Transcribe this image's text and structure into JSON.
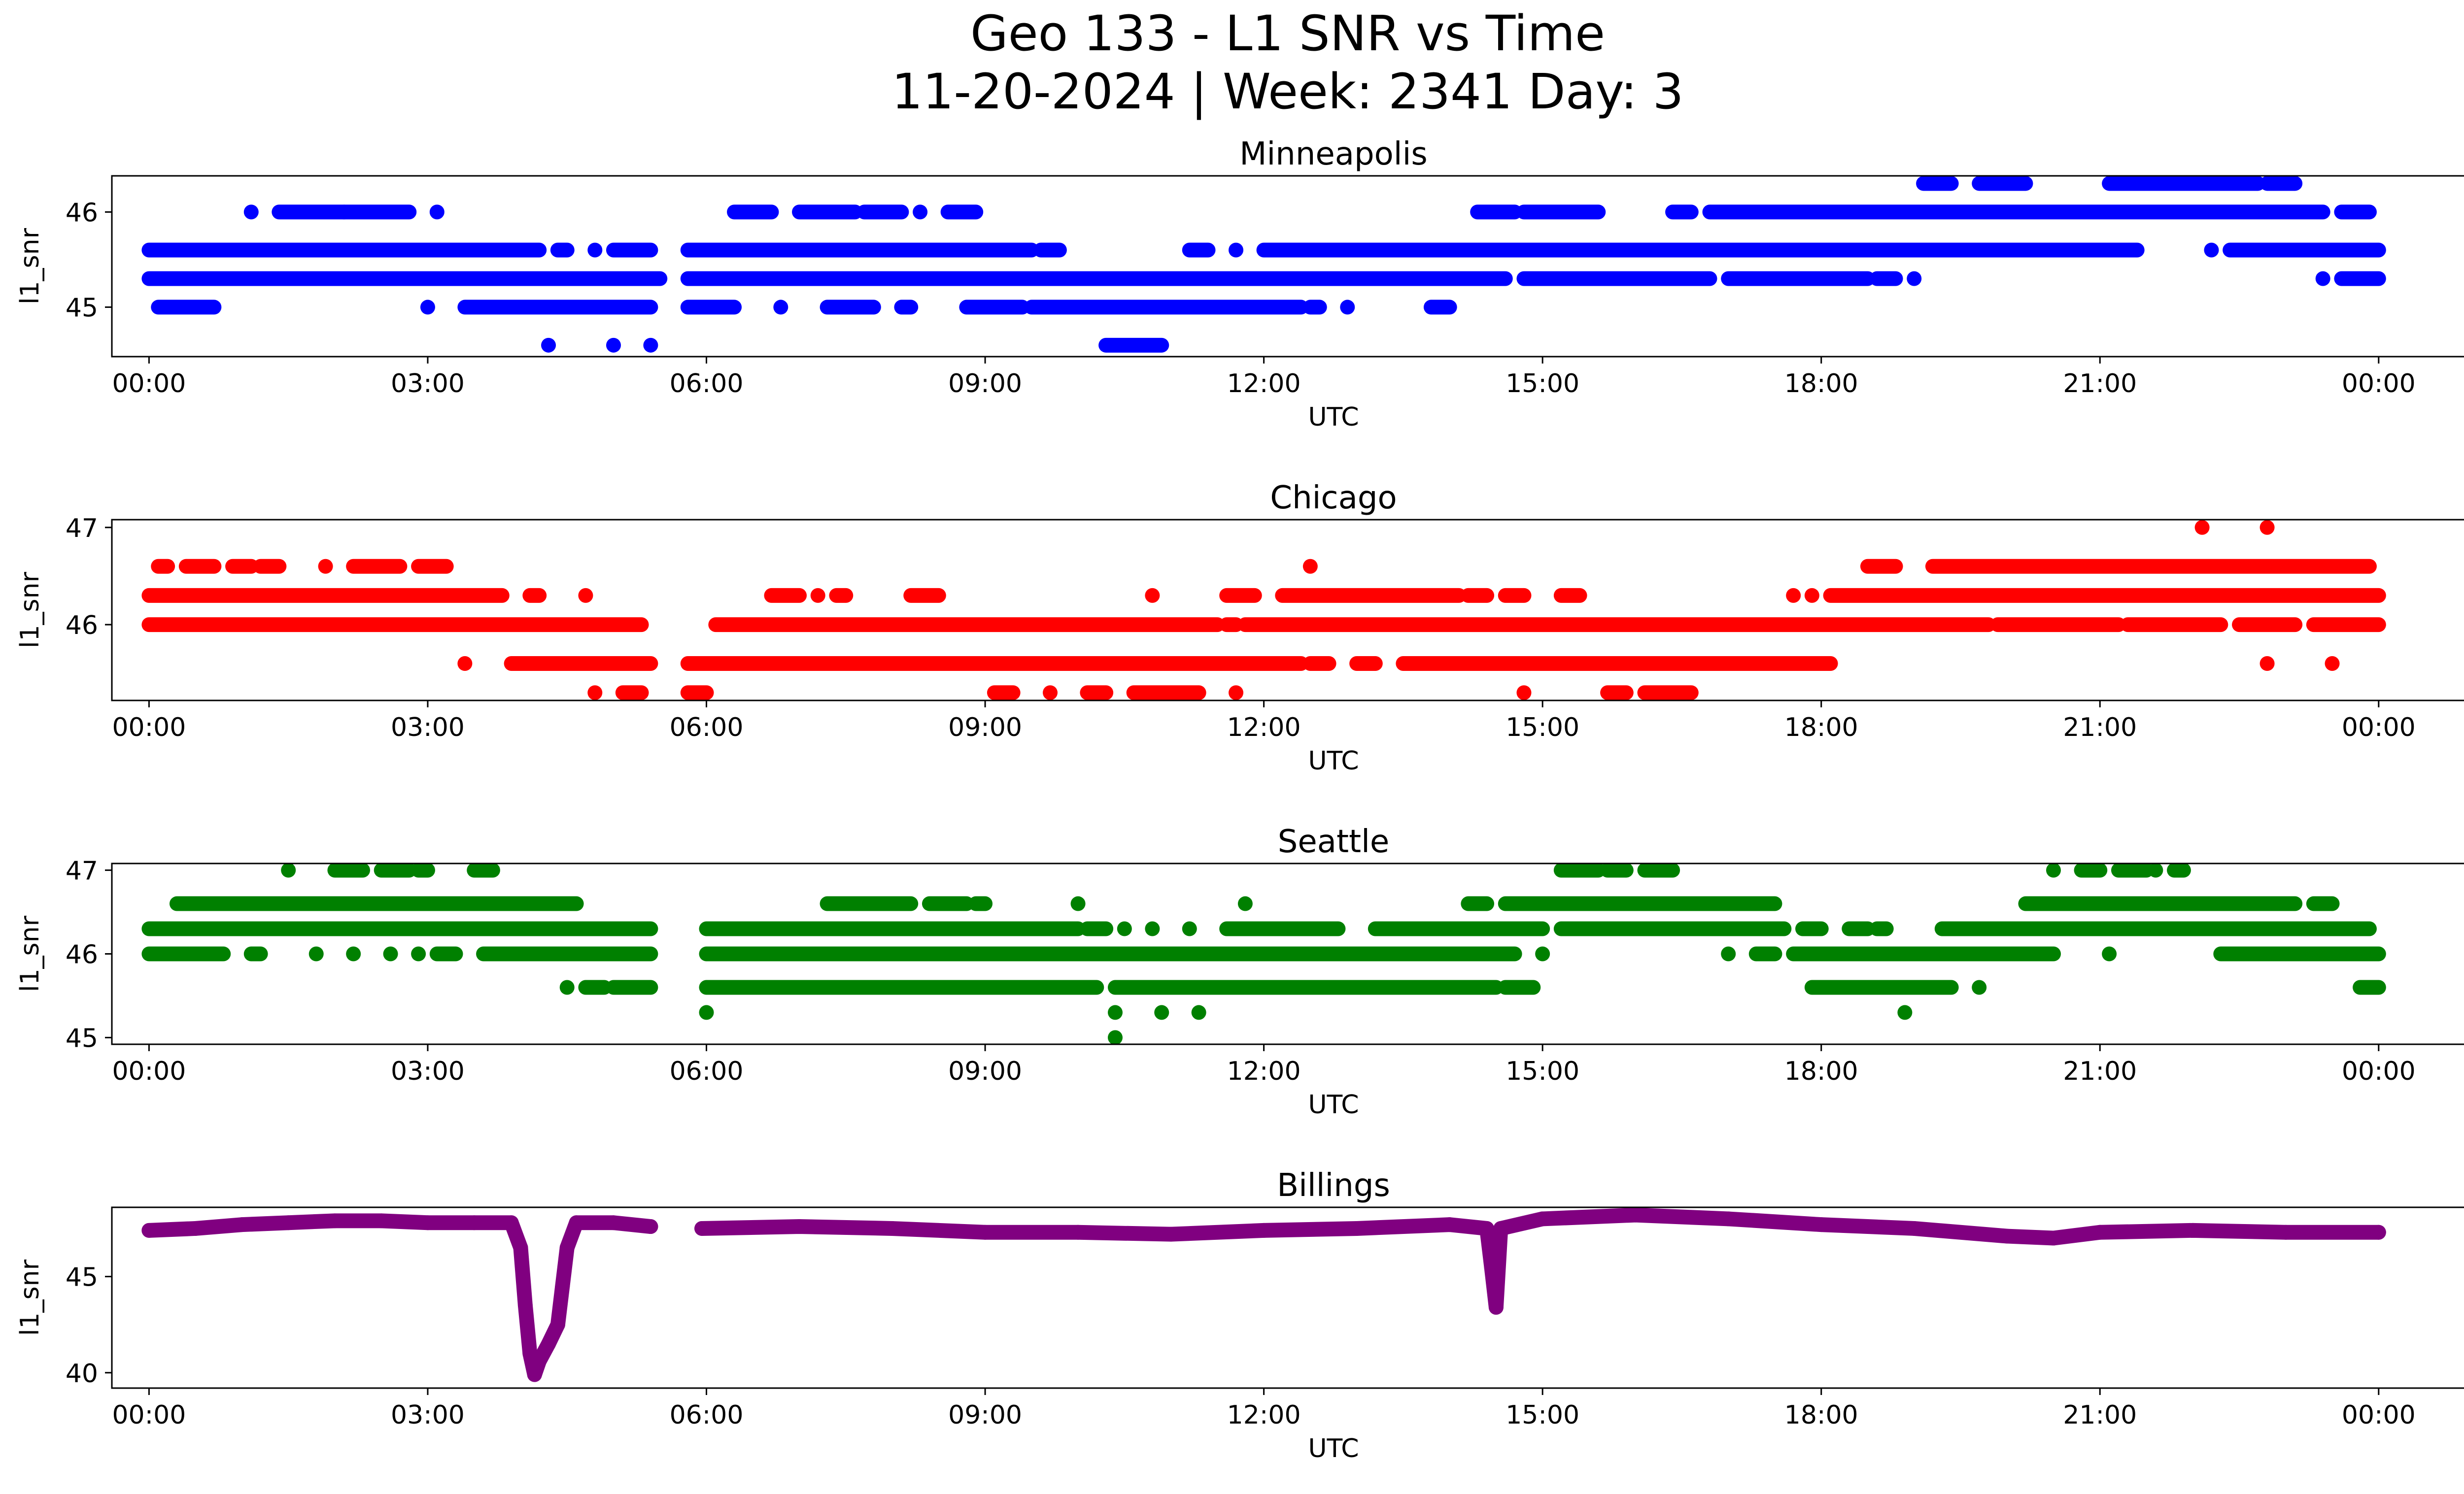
{
  "figure": {
    "title_line1": "Geo 133 - L1 SNR vs Time",
    "title_line2": "11-20-2024 | Week: 2341 Day: 3"
  },
  "chart_data": [
    {
      "type": "scatter",
      "title": "Minneapolis",
      "xlabel": "UTC",
      "ylabel": "l1_snr",
      "color": "#0000ff",
      "xlim": [
        -0.4,
        25.9
      ],
      "ylim": [
        44.48,
        46.38
      ],
      "xticks": [
        0,
        3,
        6,
        9,
        12,
        15,
        18,
        21,
        24
      ],
      "xtick_labels": [
        "00:00",
        "03:00",
        "06:00",
        "09:00",
        "12:00",
        "15:00",
        "18:00",
        "21:00",
        "00:00"
      ],
      "yticks": [
        45,
        46
      ],
      "ytick_labels": [
        "45",
        "46"
      ],
      "bands": [
        {
          "y": 46.3,
          "segments": [
            [
              19.1,
              19.4
            ],
            [
              19.7,
              20.2
            ],
            [
              21.1,
              22.7
            ],
            [
              22.8,
              23.1
            ]
          ]
        },
        {
          "y": 46.0,
          "segments": [
            [
              1.1,
              1.1
            ],
            [
              1.4,
              2.1
            ],
            [
              2.1,
              2.8
            ],
            [
              3.1,
              3.1
            ],
            [
              6.3,
              6.7
            ],
            [
              7.0,
              7.6
            ],
            [
              7.7,
              8.1
            ],
            [
              8.3,
              8.3
            ],
            [
              8.6,
              8.9
            ],
            [
              14.3,
              14.7
            ],
            [
              14.8,
              15.6
            ],
            [
              16.4,
              16.6
            ],
            [
              16.8,
              23.4
            ],
            [
              23.6,
              23.9
            ]
          ]
        },
        {
          "y": 45.6,
          "segments": [
            [
              0.0,
              4.2
            ],
            [
              4.4,
              4.5
            ],
            [
              4.8,
              4.8
            ],
            [
              5.0,
              5.4
            ],
            [
              5.8,
              9.5
            ],
            [
              9.6,
              9.8
            ],
            [
              11.2,
              11.4
            ],
            [
              11.7,
              11.7
            ],
            [
              12.0,
              21.4
            ],
            [
              22.2,
              22.2
            ],
            [
              22.4,
              24.0
            ]
          ]
        },
        {
          "y": 45.3,
          "segments": [
            [
              0.0,
              5.5
            ],
            [
              5.8,
              14.6
            ],
            [
              14.8,
              16.8
            ],
            [
              17.0,
              18.5
            ],
            [
              18.6,
              18.8
            ],
            [
              19.0,
              19.0
            ],
            [
              23.4,
              23.4
            ],
            [
              23.6,
              24.0
            ]
          ]
        },
        {
          "y": 45.0,
          "segments": [
            [
              0.1,
              0.7
            ],
            [
              3.0,
              3.0
            ],
            [
              3.4,
              5.4
            ],
            [
              5.8,
              6.3
            ],
            [
              6.8,
              6.8
            ],
            [
              7.3,
              7.8
            ],
            [
              8.1,
              8.2
            ],
            [
              8.8,
              9.4
            ],
            [
              9.5,
              12.4
            ],
            [
              12.5,
              12.6
            ],
            [
              12.9,
              12.9
            ],
            [
              13.8,
              14.0
            ]
          ]
        },
        {
          "y": 44.6,
          "segments": [
            [
              4.3,
              4.3
            ],
            [
              5.0,
              5.0
            ],
            [
              5.4,
              5.4
            ],
            [
              10.3,
              10.9
            ]
          ]
        }
      ]
    },
    {
      "type": "scatter",
      "title": "Chicago",
      "xlabel": "UTC",
      "ylabel": "l1_snr",
      "color": "#ff0000",
      "xlim": [
        -0.4,
        25.9
      ],
      "ylim": [
        45.22,
        47.08
      ],
      "xticks": [
        0,
        3,
        6,
        9,
        12,
        15,
        18,
        21,
        24
      ],
      "xtick_labels": [
        "00:00",
        "03:00",
        "06:00",
        "09:00",
        "12:00",
        "15:00",
        "18:00",
        "21:00",
        "00:00"
      ],
      "yticks": [
        46,
        47
      ],
      "ytick_labels": [
        "46",
        "47"
      ],
      "bands": [
        {
          "y": 47.0,
          "segments": [
            [
              22.1,
              22.1
            ],
            [
              22.8,
              22.8
            ]
          ]
        },
        {
          "y": 46.6,
          "segments": [
            [
              0.1,
              0.2
            ],
            [
              0.4,
              0.7
            ],
            [
              0.9,
              1.1
            ],
            [
              1.2,
              1.4
            ],
            [
              1.9,
              1.9
            ],
            [
              2.2,
              2.7
            ],
            [
              2.9,
              3.2
            ],
            [
              12.5,
              12.5
            ],
            [
              18.5,
              18.8
            ],
            [
              19.2,
              23.9
            ]
          ]
        },
        {
          "y": 46.3,
          "segments": [
            [
              0.0,
              3.8
            ],
            [
              4.1,
              4.2
            ],
            [
              4.7,
              4.7
            ],
            [
              6.7,
              7.0
            ],
            [
              7.2,
              7.2
            ],
            [
              7.4,
              7.5
            ],
            [
              8.2,
              8.5
            ],
            [
              10.8,
              10.8
            ],
            [
              11.6,
              11.9
            ],
            [
              12.2,
              14.1
            ],
            [
              14.2,
              14.4
            ],
            [
              14.6,
              14.8
            ],
            [
              15.2,
              15.4
            ],
            [
              17.7,
              17.7
            ],
            [
              17.9,
              17.9
            ],
            [
              18.1,
              24.0
            ]
          ]
        },
        {
          "y": 46.0,
          "segments": [
            [
              0.0,
              5.3
            ],
            [
              6.1,
              11.5
            ],
            [
              11.6,
              11.7
            ],
            [
              11.8,
              19.8
            ],
            [
              19.9,
              21.2
            ],
            [
              21.3,
              22.3
            ],
            [
              22.5,
              23.1
            ],
            [
              23.3,
              24.0
            ]
          ]
        },
        {
          "y": 45.6,
          "segments": [
            [
              3.4,
              3.4
            ],
            [
              3.9,
              5.4
            ],
            [
              5.8,
              12.4
            ],
            [
              12.5,
              12.7
            ],
            [
              13.0,
              13.2
            ],
            [
              13.5,
              18.1
            ],
            [
              22.8,
              22.8
            ],
            [
              23.5,
              23.5
            ]
          ]
        },
        {
          "y": 45.3,
          "segments": [
            [
              4.8,
              4.8
            ],
            [
              5.1,
              5.3
            ],
            [
              5.8,
              6.0
            ],
            [
              9.1,
              9.3
            ],
            [
              9.7,
              9.7
            ],
            [
              10.1,
              10.3
            ],
            [
              10.6,
              11.3
            ],
            [
              11.7,
              11.7
            ],
            [
              14.8,
              14.8
            ],
            [
              15.7,
              15.9
            ],
            [
              16.1,
              16.6
            ]
          ]
        }
      ]
    },
    {
      "type": "scatter",
      "title": "Seattle",
      "xlabel": "UTC",
      "ylabel": "l1_snr",
      "color": "#008000",
      "xlim": [
        -0.4,
        25.9
      ],
      "ylim": [
        44.92,
        47.08
      ],
      "xticks": [
        0,
        3,
        6,
        9,
        12,
        15,
        18,
        21,
        24
      ],
      "xtick_labels": [
        "00:00",
        "03:00",
        "06:00",
        "09:00",
        "12:00",
        "15:00",
        "18:00",
        "21:00",
        "00:00"
      ],
      "yticks": [
        45,
        46,
        47
      ],
      "ytick_labels": [
        "45",
        "46",
        "47"
      ],
      "bands": [
        {
          "y": 47.0,
          "segments": [
            [
              1.5,
              1.5
            ],
            [
              2.0,
              2.3
            ],
            [
              2.5,
              2.8
            ],
            [
              2.9,
              3.0
            ],
            [
              3.5,
              3.7
            ],
            [
              15.2,
              15.6
            ],
            [
              15.7,
              15.9
            ],
            [
              16.1,
              16.4
            ],
            [
              20.5,
              20.5
            ],
            [
              20.8,
              21.0
            ],
            [
              21.2,
              21.5
            ],
            [
              21.6,
              21.6
            ],
            [
              21.8,
              21.9
            ]
          ]
        },
        {
          "y": 46.6,
          "segments": [
            [
              0.3,
              4.6
            ],
            [
              7.3,
              8.2
            ],
            [
              8.4,
              8.8
            ],
            [
              8.9,
              9.0
            ],
            [
              10.0,
              10.0
            ],
            [
              11.8,
              11.8
            ],
            [
              14.2,
              14.4
            ],
            [
              14.6,
              17.5
            ],
            [
              20.2,
              23.1
            ],
            [
              23.3,
              23.5
            ]
          ]
        },
        {
          "y": 46.3,
          "segments": [
            [
              0.0,
              5.4
            ],
            [
              6.0,
              10.0
            ],
            [
              10.1,
              10.3
            ],
            [
              10.5,
              10.5
            ],
            [
              10.8,
              10.8
            ],
            [
              11.2,
              11.2
            ],
            [
              11.6,
              12.8
            ],
            [
              13.2,
              15.0
            ],
            [
              15.2,
              17.6
            ],
            [
              17.8,
              18.0
            ],
            [
              18.3,
              18.5
            ],
            [
              18.6,
              18.7
            ],
            [
              19.3,
              23.9
            ]
          ]
        },
        {
          "y": 46.0,
          "segments": [
            [
              0.0,
              0.8
            ],
            [
              1.1,
              1.2
            ],
            [
              1.8,
              1.8
            ],
            [
              2.2,
              2.2
            ],
            [
              2.6,
              2.6
            ],
            [
              2.9,
              2.9
            ],
            [
              3.1,
              3.3
            ],
            [
              3.6,
              5.4
            ],
            [
              6.0,
              14.7
            ],
            [
              15.0,
              15.0
            ],
            [
              17.0,
              17.0
            ],
            [
              17.3,
              17.5
            ],
            [
              17.7,
              20.5
            ],
            [
              21.1,
              21.1
            ],
            [
              22.3,
              24.0
            ]
          ]
        },
        {
          "y": 45.6,
          "segments": [
            [
              4.5,
              4.5
            ],
            [
              4.7,
              4.9
            ],
            [
              5.0,
              5.4
            ],
            [
              6.0,
              10.2
            ],
            [
              10.4,
              14.5
            ],
            [
              14.6,
              14.9
            ],
            [
              17.9,
              19.4
            ],
            [
              19.7,
              19.7
            ],
            [
              23.8,
              24.0
            ]
          ]
        },
        {
          "y": 45.3,
          "segments": [
            [
              6.0,
              6.0
            ],
            [
              10.4,
              10.4
            ],
            [
              10.9,
              10.9
            ],
            [
              11.3,
              11.3
            ],
            [
              18.9,
              18.9
            ]
          ]
        },
        {
          "y": 45.0,
          "segments": [
            [
              10.4,
              10.4
            ]
          ]
        }
      ]
    },
    {
      "type": "scatter",
      "title": "Billings",
      "xlabel": "UTC",
      "ylabel": "l1_snr",
      "color": "#800080",
      "xlim": [
        -0.4,
        25.9
      ],
      "ylim": [
        39.2,
        48.6
      ],
      "xticks": [
        0,
        3,
        6,
        9,
        12,
        15,
        18,
        21,
        24
      ],
      "xtick_labels": [
        "00:00",
        "03:00",
        "06:00",
        "09:00",
        "12:00",
        "15:00",
        "18:00",
        "21:00",
        "00:00"
      ],
      "yticks": [
        40,
        45
      ],
      "ytick_labels": [
        "40",
        "45"
      ],
      "trace": [
        [
          0.0,
          47.4
        ],
        [
          0.5,
          47.5
        ],
        [
          1.0,
          47.7
        ],
        [
          1.5,
          47.8
        ],
        [
          2.0,
          47.9
        ],
        [
          2.5,
          47.9
        ],
        [
          3.0,
          47.8
        ],
        [
          3.5,
          47.8
        ],
        [
          3.9,
          47.8
        ],
        [
          4.0,
          46.5
        ],
        [
          4.05,
          43.5
        ],
        [
          4.1,
          41.0
        ],
        [
          4.15,
          39.9
        ],
        [
          4.2,
          40.6
        ],
        [
          4.3,
          41.5
        ],
        [
          4.4,
          42.5
        ],
        [
          4.45,
          44.5
        ],
        [
          4.5,
          46.5
        ],
        [
          4.6,
          47.8
        ],
        [
          5.0,
          47.8
        ],
        [
          5.4,
          47.6
        ],
        [
          5.95,
          47.5
        ],
        [
          7.0,
          47.6
        ],
        [
          8.0,
          47.5
        ],
        [
          9.0,
          47.3
        ],
        [
          10.0,
          47.3
        ],
        [
          11.0,
          47.2
        ],
        [
          12.0,
          47.4
        ],
        [
          13.0,
          47.5
        ],
        [
          14.0,
          47.7
        ],
        [
          14.4,
          47.5
        ],
        [
          14.45,
          45.5
        ],
        [
          14.5,
          43.4
        ],
        [
          14.55,
          47.5
        ],
        [
          15.0,
          48.0
        ],
        [
          16.0,
          48.2
        ],
        [
          17.0,
          48.0
        ],
        [
          18.0,
          47.7
        ],
        [
          19.0,
          47.5
        ],
        [
          20.0,
          47.1
        ],
        [
          20.5,
          47.0
        ],
        [
          21.0,
          47.3
        ],
        [
          22.0,
          47.4
        ],
        [
          23.0,
          47.3
        ],
        [
          24.0,
          47.3
        ]
      ],
      "gaps": [
        [
          5.45,
          5.9
        ]
      ]
    }
  ]
}
